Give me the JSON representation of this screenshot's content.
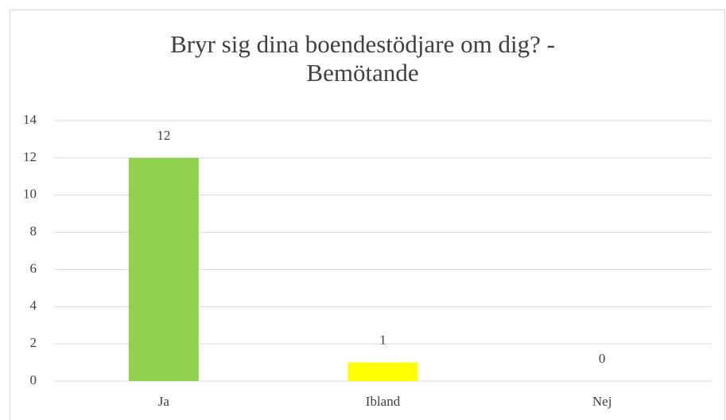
{
  "chart_data": {
    "type": "bar",
    "title": "Bryr sig dina boendestödjare om dig? - Bemötande",
    "categories": [
      "Ja",
      "Ibland",
      "Nej"
    ],
    "values": [
      12,
      1,
      0
    ],
    "colors": [
      "#92d050",
      "#ffff00"
    ],
    "ylim": [
      0,
      14
    ],
    "yticks": [
      0,
      2,
      4,
      6,
      8,
      10,
      12,
      14
    ],
    "grid": true,
    "data_labels": true
  }
}
